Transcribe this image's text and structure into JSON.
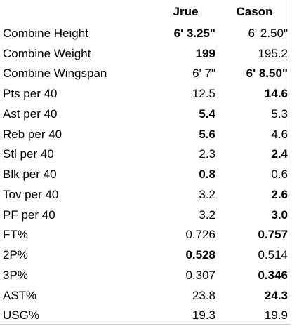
{
  "headers": {
    "label": "",
    "player_a": "Jrue",
    "player_b": "Cason"
  },
  "rows": [
    {
      "label": "Combine Height",
      "a": "6' 3.25\"",
      "b": "6' 2.50\"",
      "a_bold": true,
      "b_bold": false
    },
    {
      "label": "Combine Weight",
      "a": "199",
      "b": "195.2",
      "a_bold": true,
      "b_bold": false
    },
    {
      "label": "Combine Wingspan",
      "a": "6' 7\"",
      "b": "6' 8.50\"",
      "a_bold": false,
      "b_bold": true
    },
    {
      "label": "Pts per 40",
      "a": "12.5",
      "b": "14.6",
      "a_bold": false,
      "b_bold": true
    },
    {
      "label": "Ast per 40",
      "a": "5.4",
      "b": "5.3",
      "a_bold": true,
      "b_bold": false
    },
    {
      "label": "Reb per 40",
      "a": "5.6",
      "b": "4.6",
      "a_bold": true,
      "b_bold": false
    },
    {
      "label": "Stl per 40",
      "a": "2.3",
      "b": "2.4",
      "a_bold": false,
      "b_bold": true
    },
    {
      "label": "Blk per 40",
      "a": "0.8",
      "b": "0.6",
      "a_bold": true,
      "b_bold": false
    },
    {
      "label": "Tov per 40",
      "a": "3.2",
      "b": "2.6",
      "a_bold": false,
      "b_bold": true
    },
    {
      "label": "PF per 40",
      "a": "3.2",
      "b": "3.0",
      "a_bold": false,
      "b_bold": true
    },
    {
      "label": "FT%",
      "a": "0.726",
      "b": "0.757",
      "a_bold": false,
      "b_bold": true
    },
    {
      "label": "2P%",
      "a": "0.528",
      "b": "0.514",
      "a_bold": true,
      "b_bold": false
    },
    {
      "label": "3P%",
      "a": "0.307",
      "b": "0.346",
      "a_bold": false,
      "b_bold": true
    },
    {
      "label": "AST%",
      "a": "23.8",
      "b": "24.3",
      "a_bold": false,
      "b_bold": true
    },
    {
      "label": "USG%",
      "a": "19.3",
      "b": "19.9",
      "a_bold": false,
      "b_bold": false
    }
  ]
}
